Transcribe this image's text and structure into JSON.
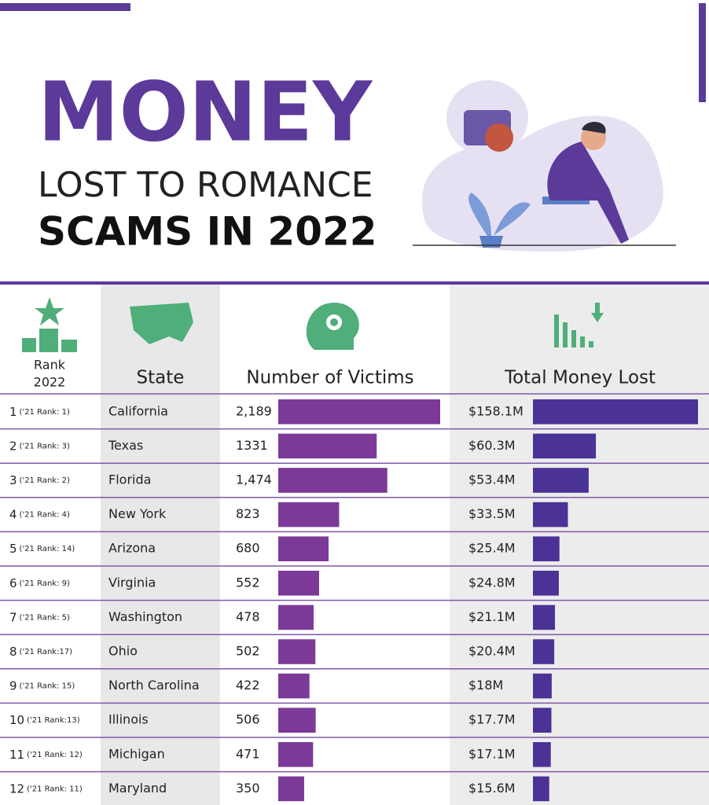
{
  "title": {
    "big": "MONEY",
    "line1": "LOST TO ROMANCE",
    "line2": "SCAMS IN 2022"
  },
  "table": {
    "headers": {
      "rank": "Rank",
      "rank_year": "2022",
      "state": "State",
      "victims": "Number of Victims",
      "money": "Total Money Lost"
    },
    "rows": [
      {
        "rank": 1,
        "prev": "('21 Rank: 1)",
        "state": "California",
        "victims": 2189,
        "victims_label": "2,189",
        "money": 158.1,
        "money_label": "$158.1M"
      },
      {
        "rank": 2,
        "prev": "('21 Rank: 3)",
        "state": "Texas",
        "victims": 1331,
        "money": 60.3,
        "money_label": "$60.3M"
      },
      {
        "rank": 3,
        "prev": "('21 Rank: 2)",
        "state": "Florida",
        "victims": 1474,
        "victims_label": "1,474",
        "money": 53.4,
        "money_label": "$53.4M"
      },
      {
        "rank": 4,
        "prev": "('21 Rank: 4)",
        "state": "New York",
        "victims": 823,
        "money": 33.5,
        "money_label": "$33.5M"
      },
      {
        "rank": 5,
        "prev": "('21 Rank: 14)",
        "state": "Arizona",
        "victims": 680,
        "money": 25.4,
        "money_label": "$25.4M"
      },
      {
        "rank": 6,
        "prev": "('21 Rank: 9)",
        "state": "Virginia",
        "victims": 552,
        "money": 24.8,
        "money_label": "$24.8M"
      },
      {
        "rank": 7,
        "prev": "('21 Rank: 5)",
        "state": "Washington",
        "victims": 478,
        "money": 21.1,
        "money_label": "$21.1M"
      },
      {
        "rank": 8,
        "prev": "('21 Rank:17)",
        "state": "Ohio",
        "victims": 502,
        "money": 20.4,
        "money_label": "$20.4M"
      },
      {
        "rank": 9,
        "prev": "('21 Rank: 15)",
        "state": "North Carolina",
        "victims": 422,
        "money": 18,
        "money_label": "$18M"
      },
      {
        "rank": 10,
        "prev": "('21 Rank:13)",
        "state": "Illinois",
        "victims": 506,
        "money": 17.7,
        "money_label": "$17.7M"
      },
      {
        "rank": 11,
        "prev": "('21 Rank: 12)",
        "state": "Michigan",
        "victims": 471,
        "money": 17.1,
        "money_label": "$17.1M"
      },
      {
        "rank": 12,
        "prev": "('21 Rank: 11)",
        "state": "Maryland",
        "victims": 350,
        "money": 15.6,
        "money_label": "$15.6M"
      }
    ]
  }
}
